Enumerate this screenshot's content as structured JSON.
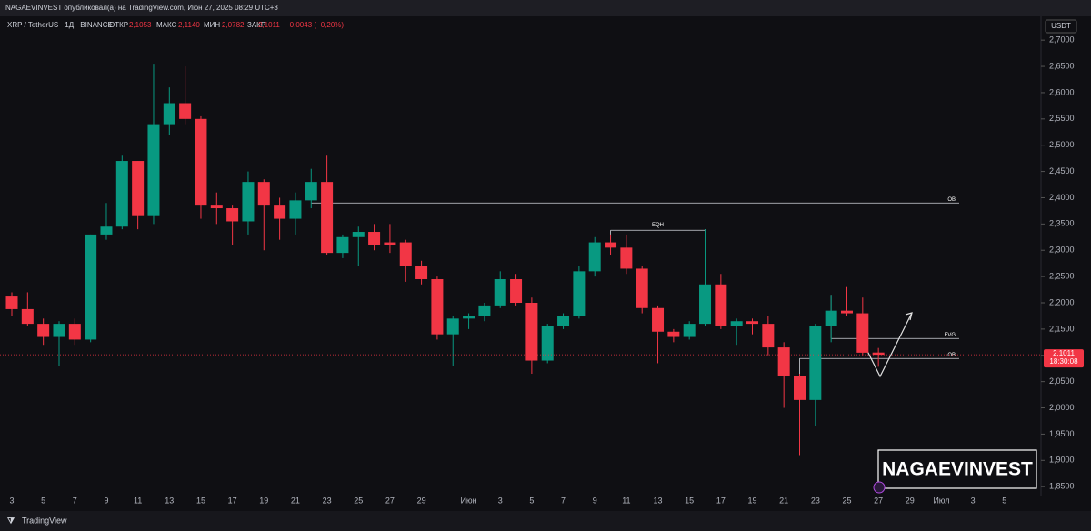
{
  "header": {
    "published": "NAGAEVINVEST опубликовал(а) на TradingView.com, Июн 27, 2025 08:29 UTC+3",
    "symbol": "XRP / TetherUS · 1Д · BINANCE",
    "open_label": "ОТКР",
    "open": "2,1053",
    "high_label": "МАКС",
    "high": "2,1140",
    "low_label": "МИН",
    "low": "2,0782",
    "close_label": "ЗАКР",
    "close": "2,1011",
    "change": "−0,0043 (−0,20%)",
    "currency": "USDT",
    "watermark": "NAGAEVINVEST",
    "footer": "TradingView"
  },
  "chart_data": {
    "type": "candlestick",
    "categories": [
      "3",
      null,
      "5",
      null,
      "7",
      null,
      "9",
      null,
      "11",
      null,
      "13",
      null,
      "15",
      null,
      "17",
      null,
      "19",
      null,
      "21",
      null,
      "23",
      null,
      "25",
      null,
      "27",
      null,
      "29",
      null,
      null,
      "Июн",
      null,
      "3",
      null,
      "5",
      null,
      "7",
      null,
      "9",
      null,
      "11",
      null,
      "13",
      null,
      "15",
      null,
      "17",
      null,
      "19",
      null,
      "21",
      null,
      "23",
      null,
      "25",
      null,
      "27"
    ],
    "future_ticks": [
      "29",
      "Июл",
      "3",
      "5"
    ],
    "open": [
      2.212,
      2.188,
      2.16,
      2.135,
      2.16,
      2.13,
      2.33,
      2.345,
      2.47,
      2.365,
      2.54,
      2.58,
      2.55,
      2.385,
      2.38,
      2.355,
      2.43,
      2.385,
      2.36,
      2.395,
      2.43,
      2.295,
      2.325,
      2.335,
      2.315,
      2.315,
      2.27,
      2.245,
      2.14,
      2.17,
      2.175,
      2.195,
      2.245,
      2.2,
      2.09,
      2.155,
      2.175,
      2.26,
      2.315,
      2.305,
      2.265,
      2.19,
      2.145,
      2.135,
      2.16,
      2.235,
      2.155,
      2.165,
      2.16,
      2.115,
      2.06,
      2.015,
      2.155,
      2.185,
      2.18,
      2.1053
    ],
    "high": [
      2.22,
      2.22,
      2.17,
      2.165,
      2.17,
      2.33,
      2.39,
      2.48,
      2.47,
      2.655,
      2.61,
      2.65,
      2.555,
      2.41,
      2.385,
      2.45,
      2.435,
      2.4,
      2.41,
      2.455,
      2.48,
      2.33,
      2.345,
      2.35,
      2.35,
      2.32,
      2.28,
      2.25,
      2.175,
      2.18,
      2.2,
      2.26,
      2.255,
      2.21,
      2.16,
      2.18,
      2.27,
      2.325,
      2.33,
      2.33,
      2.27,
      2.195,
      2.15,
      2.165,
      2.34,
      2.255,
      2.17,
      2.17,
      2.175,
      2.125,
      2.065,
      2.16,
      2.215,
      2.23,
      2.21,
      2.114
    ],
    "low": [
      2.175,
      2.155,
      2.12,
      2.08,
      2.12,
      2.125,
      2.32,
      2.34,
      2.34,
      2.35,
      2.52,
      2.54,
      2.36,
      2.35,
      2.31,
      2.33,
      2.3,
      2.32,
      2.33,
      2.38,
      2.29,
      2.285,
      2.27,
      2.3,
      2.295,
      2.24,
      2.235,
      2.13,
      2.08,
      2.15,
      2.165,
      2.19,
      2.195,
      2.065,
      2.085,
      2.15,
      2.17,
      2.25,
      2.29,
      2.255,
      2.18,
      2.085,
      2.125,
      2.13,
      2.155,
      2.15,
      2.12,
      2.14,
      2.1,
      2.0,
      1.91,
      1.965,
      2.125,
      2.175,
      2.1,
      2.0782
    ],
    "close": [
      2.188,
      2.16,
      2.135,
      2.16,
      2.13,
      2.33,
      2.345,
      2.47,
      2.365,
      2.54,
      2.58,
      2.55,
      2.385,
      2.38,
      2.355,
      2.43,
      2.385,
      2.36,
      2.395,
      2.43,
      2.295,
      2.325,
      2.335,
      2.31,
      2.31,
      2.27,
      2.245,
      2.14,
      2.17,
      2.175,
      2.195,
      2.245,
      2.2,
      2.09,
      2.155,
      2.175,
      2.26,
      2.315,
      2.305,
      2.265,
      2.19,
      2.145,
      2.135,
      2.16,
      2.235,
      2.155,
      2.165,
      2.16,
      2.115,
      2.06,
      2.015,
      2.155,
      2.185,
      2.18,
      2.105,
      2.1011
    ],
    "up_color": "#089981",
    "down_color": "#f23645",
    "ylim": [
      1.833,
      2.728
    ],
    "yticks": [
      {
        "value": 1.85,
        "label": "1,8500"
      },
      {
        "value": 1.9,
        "label": "1,9000"
      },
      {
        "value": 1.95,
        "label": "1,9500"
      },
      {
        "value": 2.0,
        "label": "2,0000"
      },
      {
        "value": 2.05,
        "label": "2,0500"
      },
      {
        "value": 2.1,
        "label": "2,1000"
      },
      {
        "value": 2.15,
        "label": "2,1500"
      },
      {
        "value": 2.2,
        "label": "2,2000"
      },
      {
        "value": 2.25,
        "label": "2,2500"
      },
      {
        "value": 2.3,
        "label": "2,3000"
      },
      {
        "value": 2.35,
        "label": "2,3500"
      },
      {
        "value": 2.4,
        "label": "2,4000"
      },
      {
        "value": 2.45,
        "label": "2,4500"
      },
      {
        "value": 2.5,
        "label": "2,5000"
      },
      {
        "value": 2.55,
        "label": "2,5500"
      },
      {
        "value": 2.6,
        "label": "2,6000"
      },
      {
        "value": 2.65,
        "label": "2,6500"
      },
      {
        "value": 2.7,
        "label": "2,7000"
      }
    ],
    "grid": false,
    "last_price": {
      "value": 2.1011,
      "label": "2,1011"
    },
    "countdown": "18:30:08",
    "annotations": [
      {
        "label": "OB",
        "price": 2.39
      },
      {
        "label": "EQH",
        "price": 2.338
      },
      {
        "label": "FVG",
        "price": 2.132
      },
      {
        "label": "OB",
        "price": 2.094
      }
    ]
  }
}
